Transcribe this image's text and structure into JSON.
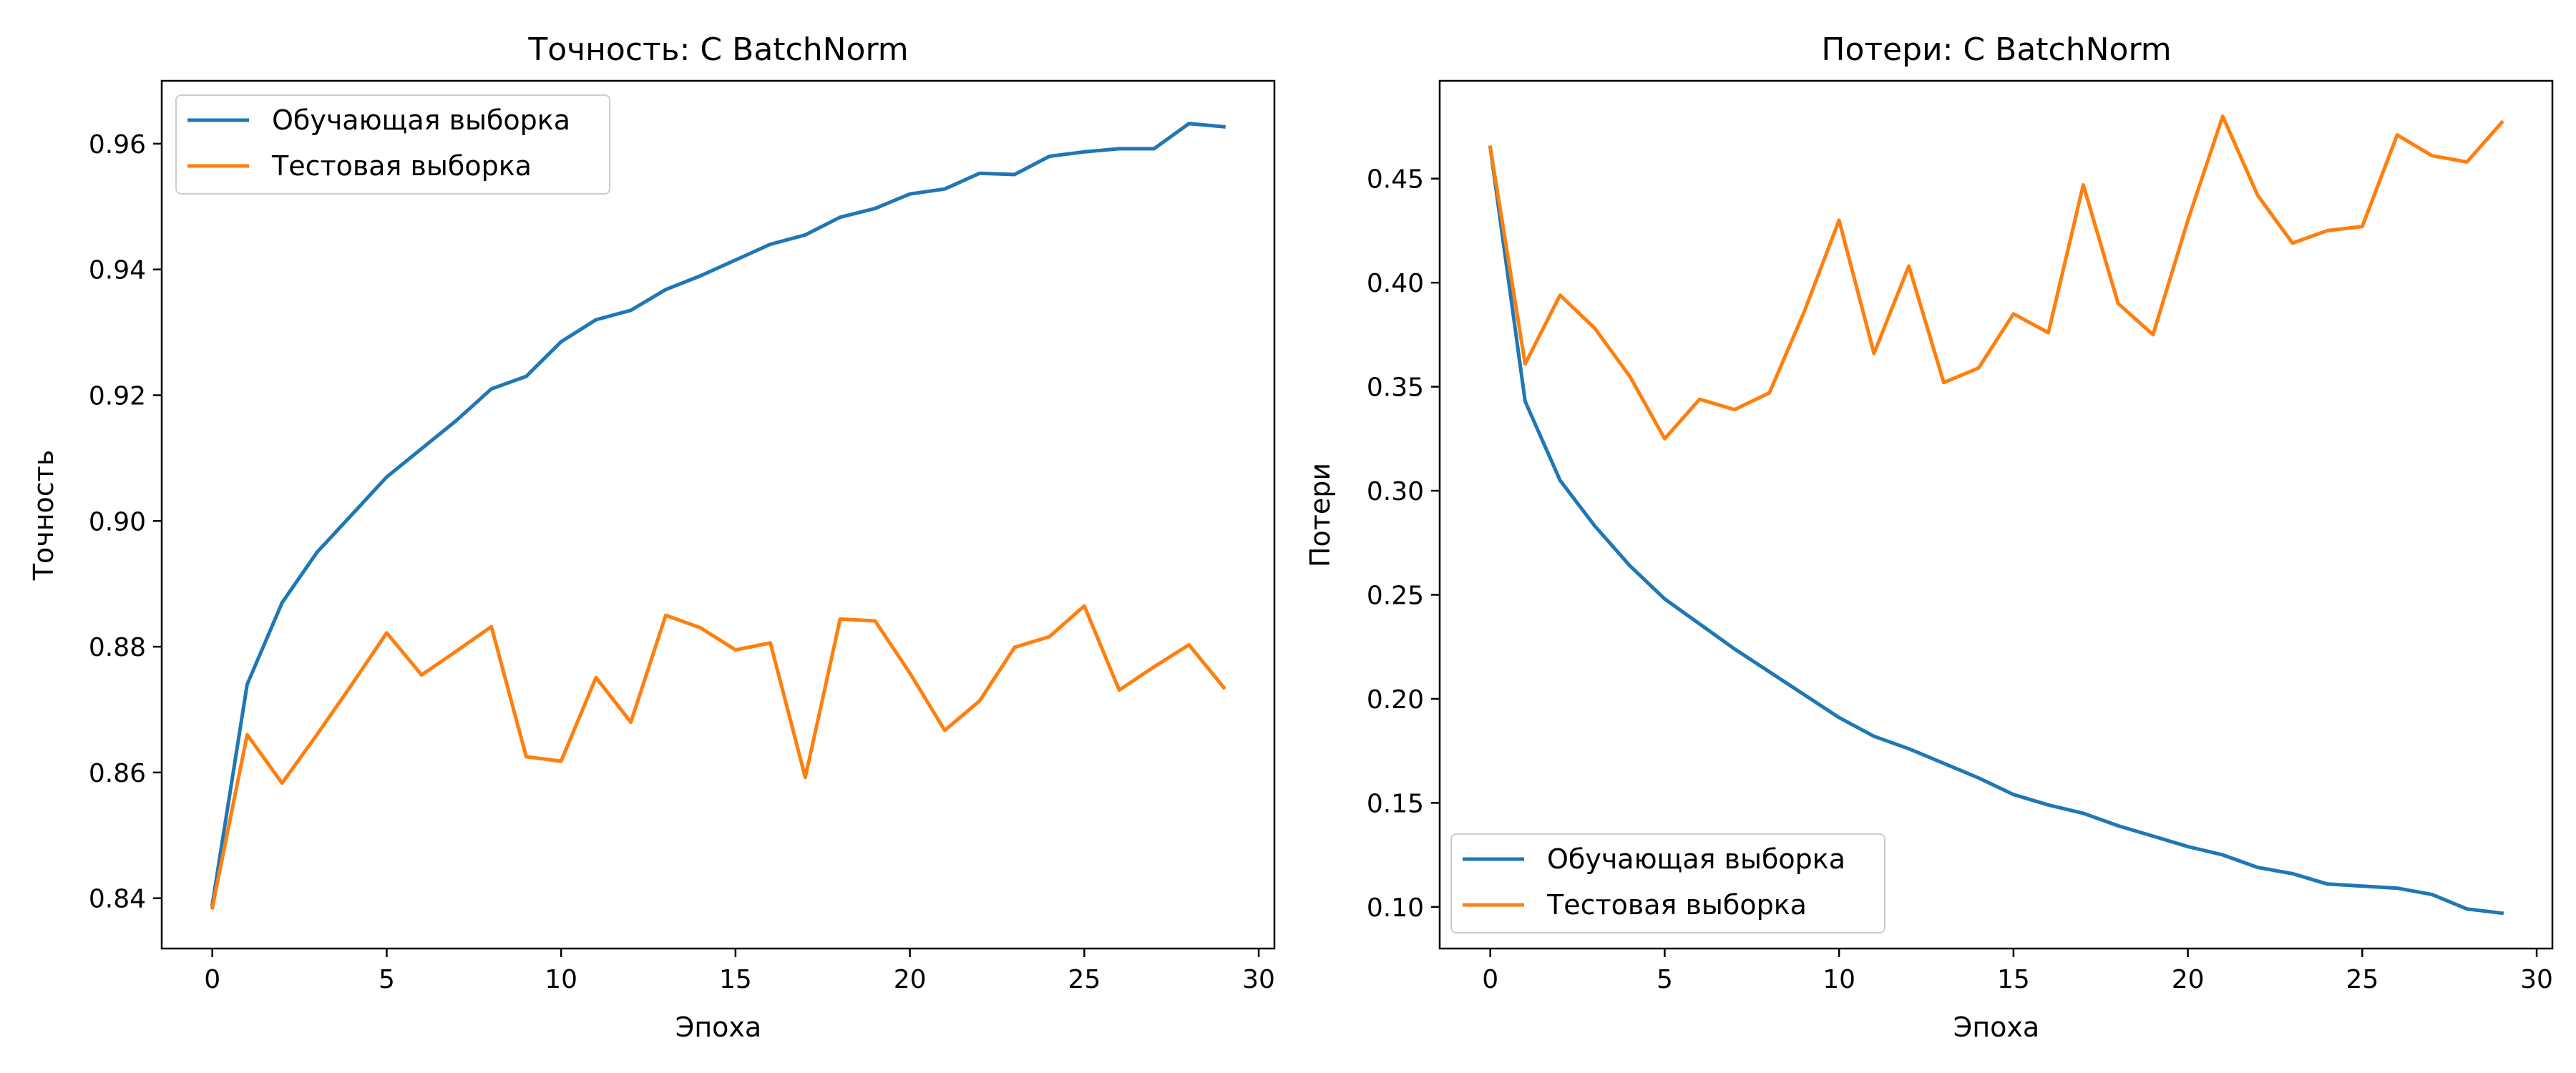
{
  "chart_data": [
    {
      "type": "line",
      "title": "Точность: С BatchNorm",
      "xlabel": "Эпоха",
      "ylabel": "Точность",
      "xlim": [
        -1.45,
        30.45
      ],
      "ylim": [
        0.832,
        0.97
      ],
      "xticks": [
        0,
        5,
        10,
        15,
        20,
        25,
        30
      ],
      "yticks": [
        0.84,
        0.86,
        0.88,
        0.9,
        0.92,
        0.94,
        0.96
      ],
      "tick_decimals": 2,
      "grid": false,
      "legend_position": "upper-left",
      "x": [
        0,
        1,
        2,
        3,
        4,
        5,
        6,
        7,
        8,
        9,
        10,
        11,
        12,
        13,
        14,
        15,
        16,
        17,
        18,
        19,
        20,
        21,
        22,
        23,
        24,
        25,
        26,
        27,
        28,
        29
      ],
      "series": [
        {
          "name": "Обучающая выборка",
          "color": "#1f77b4",
          "values": [
            0.839,
            0.874,
            0.887,
            0.895,
            0.901,
            0.907,
            0.9115,
            0.916,
            0.921,
            0.923,
            0.9285,
            0.932,
            0.9335,
            0.9368,
            0.939,
            0.9415,
            0.944,
            0.9455,
            0.9483,
            0.9497,
            0.952,
            0.9528,
            0.9553,
            0.9551,
            0.958,
            0.9587,
            0.9592,
            0.9592,
            0.9632,
            0.9627
          ]
        },
        {
          "name": "Тестовая выборка",
          "color": "#ff7f0e",
          "values": [
            0.8385,
            0.866,
            0.8583,
            0.866,
            0.874,
            0.8822,
            0.8755,
            0.8793,
            0.8832,
            0.8625,
            0.8618,
            0.8751,
            0.868,
            0.885,
            0.883,
            0.8795,
            0.8806,
            0.8592,
            0.8844,
            0.8841,
            0.8758,
            0.8667,
            0.8714,
            0.8799,
            0.8816,
            0.8865,
            0.8731,
            0.8768,
            0.8803,
            0.8735
          ]
        }
      ]
    },
    {
      "type": "line",
      "title": "Потери: С BatchNorm",
      "xlabel": "Эпоха",
      "ylabel": "Потери",
      "xlim": [
        -1.45,
        30.45
      ],
      "ylim": [
        0.08,
        0.497
      ],
      "xticks": [
        0,
        5,
        10,
        15,
        20,
        25,
        30
      ],
      "yticks": [
        0.1,
        0.15,
        0.2,
        0.25,
        0.3,
        0.35,
        0.4,
        0.45
      ],
      "tick_decimals": 2,
      "grid": false,
      "legend_position": "lower-left",
      "x": [
        0,
        1,
        2,
        3,
        4,
        5,
        6,
        7,
        8,
        9,
        10,
        11,
        12,
        13,
        14,
        15,
        16,
        17,
        18,
        19,
        20,
        21,
        22,
        23,
        24,
        25,
        26,
        27,
        28,
        29
      ],
      "series": [
        {
          "name": "Обучающая выборка",
          "color": "#1f77b4",
          "values": [
            0.465,
            0.343,
            0.305,
            0.283,
            0.264,
            0.248,
            0.236,
            0.224,
            0.213,
            0.202,
            0.191,
            0.182,
            0.176,
            0.169,
            0.162,
            0.154,
            0.149,
            0.145,
            0.139,
            0.134,
            0.129,
            0.125,
            0.119,
            0.116,
            0.111,
            0.11,
            0.109,
            0.106,
            0.099,
            0.097
          ]
        },
        {
          "name": "Тестовая выборка",
          "color": "#ff7f0e",
          "values": [
            0.465,
            0.361,
            0.394,
            0.378,
            0.355,
            0.325,
            0.344,
            0.339,
            0.347,
            0.386,
            0.43,
            0.366,
            0.408,
            0.352,
            0.359,
            0.385,
            0.376,
            0.447,
            0.39,
            0.375,
            0.43,
            0.48,
            0.442,
            0.419,
            0.425,
            0.427,
            0.471,
            0.461,
            0.458,
            0.477
          ]
        }
      ]
    }
  ]
}
